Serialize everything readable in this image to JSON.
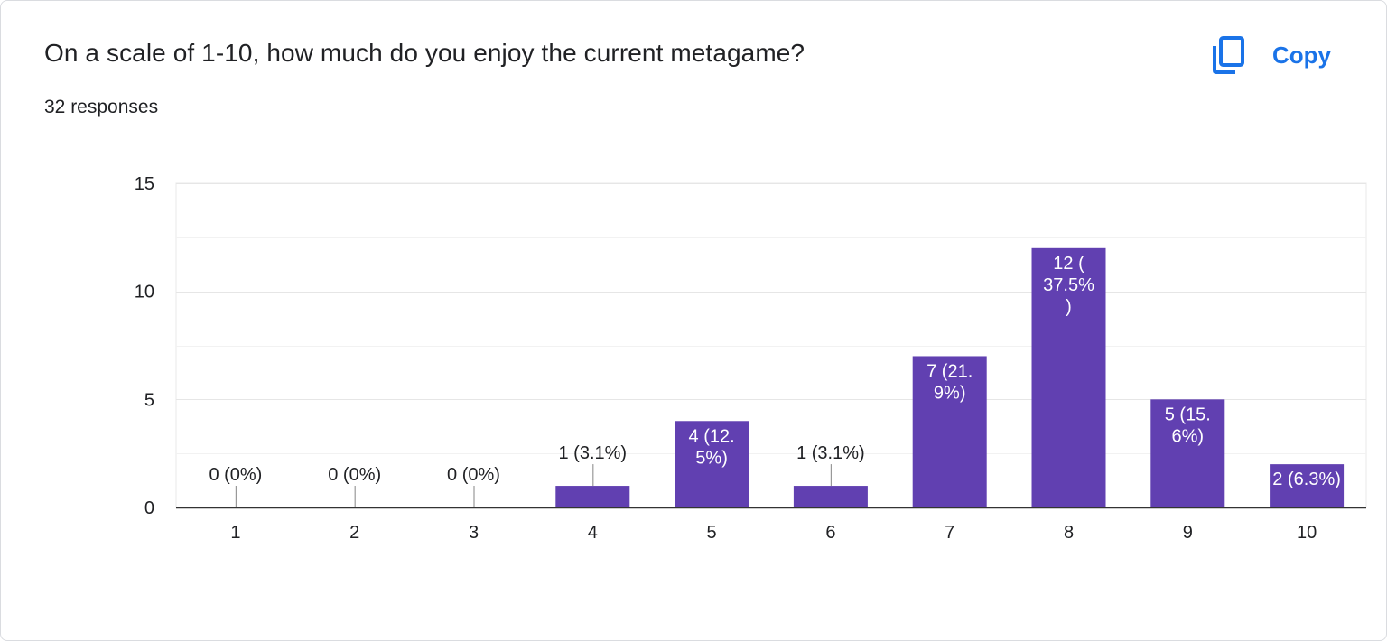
{
  "question": {
    "title": "On a scale of 1-10, how much do you enjoy the current metagame?",
    "responses": "32 responses"
  },
  "copy": {
    "label": "Copy",
    "icon": "copy-icon"
  },
  "colors": {
    "bar": "#6140b1",
    "accent": "#1a73e8",
    "grid": "#e8e8e8",
    "axis": "#333333"
  },
  "chart_data": {
    "type": "bar",
    "categories": [
      "1",
      "2",
      "3",
      "4",
      "5",
      "6",
      "7",
      "8",
      "9",
      "10"
    ],
    "values": [
      0,
      0,
      0,
      1,
      4,
      1,
      7,
      12,
      5,
      2
    ],
    "labels": [
      [
        "0 (0%)"
      ],
      [
        "0 (0%)"
      ],
      [
        "0 (0%)"
      ],
      [
        "1 (3.1%)"
      ],
      [
        "4 (12.",
        "5%)"
      ],
      [
        "1 (3.1%)"
      ],
      [
        "7 (21.",
        "9%)"
      ],
      [
        "12 (",
        "37.5%",
        ")"
      ],
      [
        "5 (15.",
        "6%)"
      ],
      [
        "2 (6.3%)"
      ]
    ],
    "yticks": [
      0,
      5,
      10,
      15
    ],
    "ylim": [
      0,
      15
    ],
    "grid": true,
    "xlabel": "",
    "ylabel": ""
  }
}
